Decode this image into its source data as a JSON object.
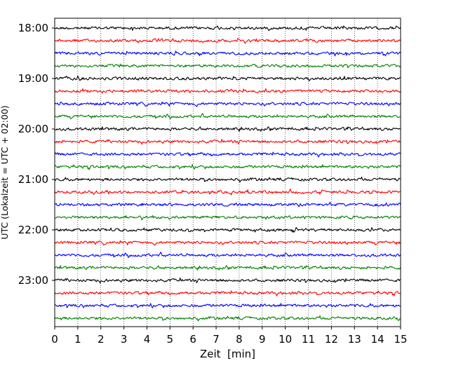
{
  "chart_data": {
    "type": "line",
    "title": "",
    "xlabel": "Zeit  [min]",
    "ylabel": "UTC (Lokalzeit = UTC + 02:00)",
    "xlim": [
      0,
      15
    ],
    "x_ticks": [
      0,
      1,
      2,
      3,
      4,
      5,
      6,
      7,
      8,
      9,
      10,
      11,
      12,
      13,
      14,
      15
    ],
    "x_tick_labels": [
      "0",
      "1",
      "2",
      "3",
      "4",
      "5",
      "6",
      "7",
      "8",
      "9",
      "10",
      "11",
      "12",
      "13",
      "14",
      "15"
    ],
    "grid": "vertical dotted lines at each minute",
    "y_tick_labels": [
      "18:00",
      "19:00",
      "20:00",
      "21:00",
      "22:00",
      "23:00"
    ],
    "trace_colors": [
      "#000000",
      "#ff0000",
      "#0000ff",
      "#008000"
    ],
    "traces": [
      {
        "start": "18:00",
        "color": "#000000"
      },
      {
        "start": "18:15",
        "color": "#ff0000"
      },
      {
        "start": "18:30",
        "color": "#0000ff"
      },
      {
        "start": "18:45",
        "color": "#008000"
      },
      {
        "start": "19:00",
        "color": "#000000"
      },
      {
        "start": "19:15",
        "color": "#ff0000"
      },
      {
        "start": "19:30",
        "color": "#0000ff"
      },
      {
        "start": "19:45",
        "color": "#008000"
      },
      {
        "start": "20:00",
        "color": "#000000"
      },
      {
        "start": "20:15",
        "color": "#ff0000"
      },
      {
        "start": "20:30",
        "color": "#0000ff"
      },
      {
        "start": "20:45",
        "color": "#008000"
      },
      {
        "start": "21:00",
        "color": "#000000"
      },
      {
        "start": "21:15",
        "color": "#ff0000"
      },
      {
        "start": "21:30",
        "color": "#0000ff"
      },
      {
        "start": "21:45",
        "color": "#008000"
      },
      {
        "start": "22:00",
        "color": "#000000"
      },
      {
        "start": "22:15",
        "color": "#ff0000"
      },
      {
        "start": "22:30",
        "color": "#0000ff"
      },
      {
        "start": "22:45",
        "color": "#008000"
      },
      {
        "start": "23:00",
        "color": "#000000"
      },
      {
        "start": "23:15",
        "color": "#ff0000"
      },
      {
        "start": "23:30",
        "color": "#0000ff"
      },
      {
        "start": "23:45",
        "color": "#008000"
      }
    ]
  }
}
